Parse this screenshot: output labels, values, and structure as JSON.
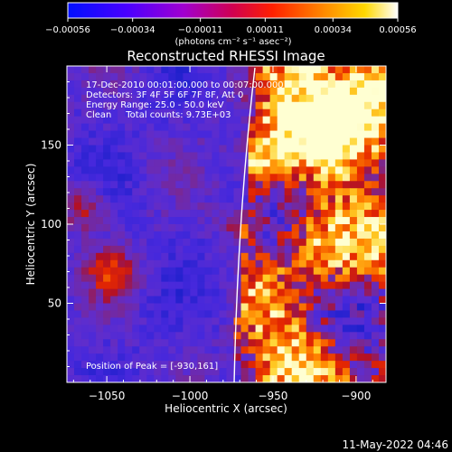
{
  "chart_data": {
    "type": "heatmap",
    "title": "Reconstructed RHESSI Image",
    "xlabel": "Heliocentric X (arcsec)",
    "ylabel": "Heliocentric Y (arcsec)",
    "xlim": [
      -1074,
      -882
    ],
    "ylim": [
      0,
      200
    ],
    "x_ticks": [
      -1050,
      -1000,
      -950,
      -900
    ],
    "x_tick_labels": [
      "−1050",
      "−1000",
      "−950",
      "−900"
    ],
    "y_ticks": [
      50,
      100,
      150
    ],
    "y_tick_labels": [
      "50",
      "100",
      "150"
    ],
    "colorbar": {
      "min": -0.00056,
      "max": 0.00056,
      "ticks": [
        -0.00056,
        -0.00034,
        -0.00011,
        0.00011,
        0.00034,
        0.00056
      ],
      "tick_labels": [
        "−0.00056",
        "−0.00034",
        "−0.00011",
        "0.00011",
        "0.00034",
        "0.00056"
      ],
      "units": "(photons cm⁻² s⁻¹ asec⁻²)",
      "colors": [
        "#0000ff",
        "#6a00ff",
        "#c800c8",
        "#ff0000",
        "#ff7a00",
        "#ffff00",
        "#ffffff"
      ]
    },
    "info_lines": [
      "17-Dec-2010 00:01:00.000 to 00:07:00.000",
      "Detectors: 3F 4F 5F 6F 7F 8F, Att 0",
      "Energy Range: 25.0 - 50.0 keV",
      "Clean     Total counts: 9.73E+03"
    ],
    "peak_label": "Position of Peak = [-930,161]",
    "peak_position": [
      -930,
      161
    ],
    "limb_color": "#ffffff"
  },
  "footer": {
    "timestamp": "11-May-2022 04:46"
  }
}
